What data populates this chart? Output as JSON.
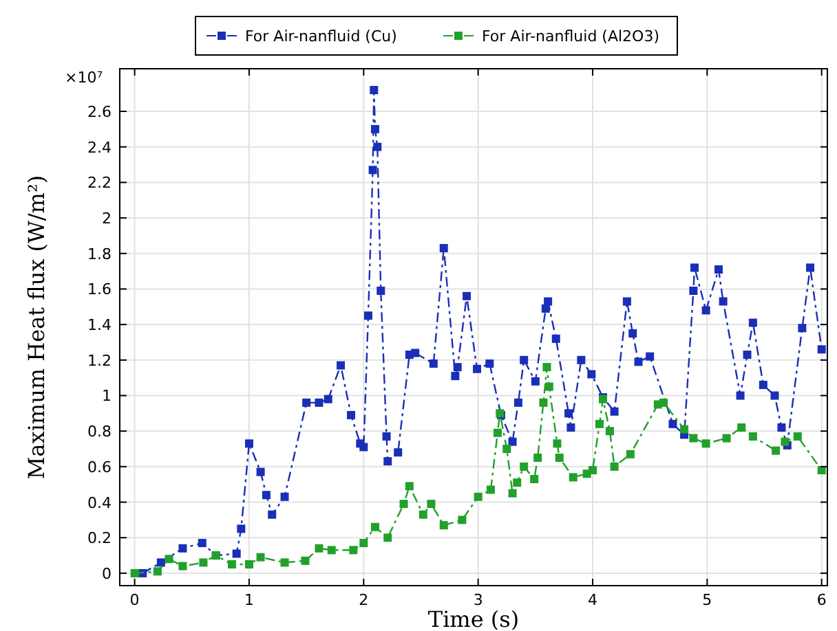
{
  "chart_data": {
    "type": "line",
    "xlabel": "Time (s)",
    "ylabel": "Maximum Heat flux (W/m²)",
    "annotations": [
      "×10⁷"
    ],
    "xlim": [
      -0.13,
      6.05
    ],
    "ylim": [
      -0.07,
      2.84
    ],
    "xticks": [
      0,
      1,
      2,
      3,
      4,
      5,
      6
    ],
    "yticks": [
      0,
      0.2,
      0.4,
      0.6,
      0.8,
      1,
      1.2,
      1.4,
      1.6,
      1.8,
      2,
      2.2,
      2.4,
      2.6
    ],
    "grid": true,
    "legend": "top",
    "marker": "square",
    "line_style": "dashed",
    "series": [
      {
        "name": "For Air-nanfluid (Cu)",
        "color": "#1a2fb8",
        "x": [
          0.07,
          0.23,
          0.42,
          0.59,
          0.71,
          0.89,
          0.93,
          1.0,
          1.1,
          1.15,
          1.2,
          1.31,
          1.5,
          1.61,
          1.69,
          1.8,
          1.89,
          1.97,
          2.0,
          2.04,
          2.08,
          2.09,
          2.1,
          2.12,
          2.15,
          2.2,
          2.21,
          2.3,
          2.4,
          2.45,
          2.61,
          2.7,
          2.8,
          2.82,
          2.9,
          2.99,
          3.1,
          3.2,
          3.3,
          3.35,
          3.4,
          3.5,
          3.59,
          3.61,
          3.68,
          3.79,
          3.81,
          3.9,
          3.99,
          4.09,
          4.19,
          4.3,
          4.35,
          4.4,
          4.5,
          4.7,
          4.8,
          4.88,
          4.89,
          4.99,
          5.1,
          5.14,
          5.29,
          5.35,
          5.4,
          5.49,
          5.59,
          5.65,
          5.7,
          5.83,
          5.9,
          6.0
        ],
        "values": [
          0,
          0.06,
          0.14,
          0.17,
          0.1,
          0.11,
          0.25,
          0.73,
          0.57,
          0.44,
          0.33,
          0.43,
          0.96,
          0.96,
          0.98,
          1.17,
          0.89,
          0.73,
          0.71,
          1.45,
          2.27,
          2.72,
          2.5,
          2.4,
          1.59,
          0.77,
          0.63,
          0.68,
          1.23,
          1.24,
          1.18,
          1.83,
          1.11,
          1.16,
          1.56,
          1.15,
          1.18,
          0.89,
          0.74,
          0.96,
          1.2,
          1.08,
          1.49,
          1.53,
          1.32,
          0.9,
          0.82,
          1.2,
          1.12,
          0.99,
          0.91,
          1.53,
          1.35,
          1.19,
          1.22,
          0.84,
          0.78,
          1.59,
          1.72,
          1.48,
          1.71,
          1.53,
          1.0,
          1.23,
          1.41,
          1.06,
          1.0,
          0.82,
          0.72,
          1.38,
          1.72,
          1.26
        ]
      },
      {
        "name": "For Air-nanfluid (Al2O3)",
        "color": "#22a02c",
        "x": [
          0,
          0.2,
          0.3,
          0.42,
          0.6,
          0.71,
          0.85,
          1.0,
          1.1,
          1.31,
          1.49,
          1.61,
          1.72,
          1.91,
          2.0,
          2.1,
          2.21,
          2.35,
          2.4,
          2.52,
          2.59,
          2.7,
          2.86,
          3.0,
          3.11,
          3.17,
          3.19,
          3.25,
          3.3,
          3.34,
          3.4,
          3.49,
          3.52,
          3.57,
          3.6,
          3.62,
          3.69,
          3.71,
          3.83,
          3.95,
          4.0,
          4.06,
          4.09,
          4.15,
          4.19,
          4.33,
          4.57,
          4.62,
          4.8,
          4.88,
          4.99,
          5.17,
          5.3,
          5.4,
          5.6,
          5.68,
          5.79,
          6.0
        ],
        "values": [
          0,
          0.01,
          0.08,
          0.04,
          0.06,
          0.1,
          0.05,
          0.05,
          0.09,
          0.06,
          0.07,
          0.14,
          0.13,
          0.13,
          0.17,
          0.26,
          0.2,
          0.39,
          0.49,
          0.33,
          0.39,
          0.27,
          0.3,
          0.43,
          0.47,
          0.79,
          0.9,
          0.7,
          0.45,
          0.51,
          0.6,
          0.53,
          0.65,
          0.96,
          1.16,
          1.05,
          0.73,
          0.65,
          0.54,
          0.56,
          0.58,
          0.84,
          0.98,
          0.8,
          0.6,
          0.67,
          0.95,
          0.96,
          0.81,
          0.76,
          0.73,
          0.76,
          0.82,
          0.77,
          0.69,
          0.74,
          0.77,
          0.58
        ]
      }
    ]
  }
}
